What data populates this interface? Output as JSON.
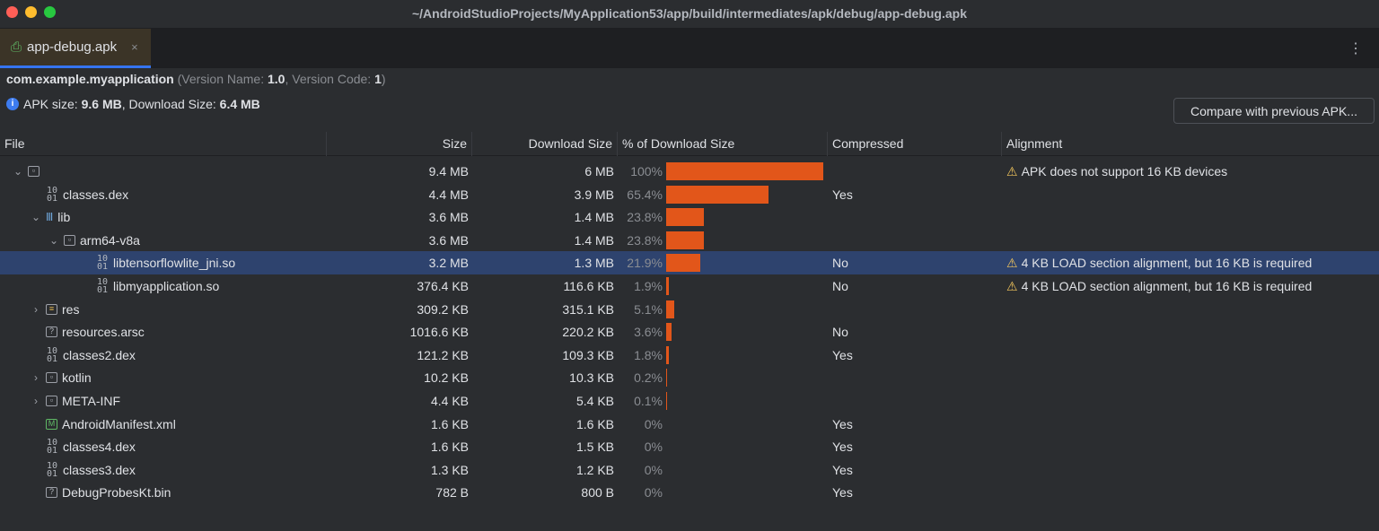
{
  "window": {
    "title": "~/AndroidStudioProjects/MyApplication53/app/build/intermediates/apk/debug/app-debug.apk"
  },
  "tab": {
    "label": "app-debug.apk",
    "close": "×"
  },
  "info": {
    "package": "com.example.myapplication",
    "version_name_label": "(Version Name: ",
    "version_name": "1.0",
    "version_code_label": ", Version Code: ",
    "version_code": "1",
    "close_paren": ")",
    "apk_size_label": "APK size: ",
    "apk_size": "9.6 MB",
    "download_size_label": ", Download Size: ",
    "download_size": "6.4 MB"
  },
  "compare_button": "Compare with previous APK...",
  "columns": [
    "File",
    "Size",
    "Download Size",
    "% of Download Size",
    "Compressed",
    "Alignment"
  ],
  "accent": "#e2561a",
  "rows": [
    {
      "name": "",
      "icon": "folder",
      "depth": 0,
      "expander": "expanded",
      "size": "9.4 MB",
      "download": "6 MB",
      "pct": "100%",
      "pct_value": 100,
      "compressed": "",
      "alignment": "APK does not support 16 KB devices"
    },
    {
      "name": "classes.dex",
      "icon": "binary",
      "depth": 1,
      "size": "4.4 MB",
      "download": "3.9 MB",
      "pct": "65.4%",
      "pct_value": 65.4,
      "compressed": "Yes",
      "alignment": ""
    },
    {
      "name": "lib",
      "icon": "library",
      "depth": 1,
      "expander": "expanded",
      "size": "3.6 MB",
      "download": "1.4 MB",
      "pct": "23.8%",
      "pct_value": 23.8,
      "compressed": "",
      "alignment": ""
    },
    {
      "name": "arm64-v8a",
      "icon": "folder",
      "depth": 2,
      "expander": "expanded",
      "size": "3.6 MB",
      "download": "1.4 MB",
      "pct": "23.8%",
      "pct_value": 23.8,
      "compressed": "",
      "alignment": ""
    },
    {
      "name": "libtensorflowlite_jni.so",
      "icon": "binary",
      "depth": 4,
      "size": "3.2 MB",
      "download": "1.3 MB",
      "pct": "21.9%",
      "pct_value": 21.9,
      "compressed": "No",
      "alignment": "4 KB LOAD section alignment, but 16 KB is required",
      "selected": true
    },
    {
      "name": "libmyapplication.so",
      "icon": "binary",
      "depth": 4,
      "size": "376.4 KB",
      "download": "116.6 KB",
      "pct": "1.9%",
      "pct_value": 1.9,
      "compressed": "No",
      "alignment": "4 KB LOAD section alignment, but 16 KB is required"
    },
    {
      "name": "res",
      "icon": "res-folder",
      "depth": 1,
      "expander": "collapsed",
      "size": "309.2 KB",
      "download": "315.1 KB",
      "pct": "5.1%",
      "pct_value": 5.1,
      "compressed": "",
      "alignment": ""
    },
    {
      "name": "resources.arsc",
      "icon": "unknown",
      "depth": 1,
      "size": "1016.6 KB",
      "download": "220.2 KB",
      "pct": "3.6%",
      "pct_value": 3.6,
      "compressed": "No",
      "alignment": ""
    },
    {
      "name": "classes2.dex",
      "icon": "binary",
      "depth": 1,
      "size": "121.2 KB",
      "download": "109.3 KB",
      "pct": "1.8%",
      "pct_value": 1.8,
      "compressed": "Yes",
      "alignment": ""
    },
    {
      "name": "kotlin",
      "icon": "folder",
      "depth": 1,
      "expander": "collapsed",
      "size": "10.2 KB",
      "download": "10.3 KB",
      "pct": "0.2%",
      "pct_value": 0.2,
      "compressed": "",
      "alignment": ""
    },
    {
      "name": "META-INF",
      "icon": "folder",
      "depth": 1,
      "expander": "collapsed",
      "size": "4.4 KB",
      "download": "5.4 KB",
      "pct": "0.1%",
      "pct_value": 0.1,
      "compressed": "",
      "alignment": ""
    },
    {
      "name": "AndroidManifest.xml",
      "icon": "manifest",
      "depth": 1,
      "size": "1.6 KB",
      "download": "1.6 KB",
      "pct": "0%",
      "pct_value": 0,
      "compressed": "Yes",
      "alignment": ""
    },
    {
      "name": "classes4.dex",
      "icon": "binary",
      "depth": 1,
      "size": "1.6 KB",
      "download": "1.5 KB",
      "pct": "0%",
      "pct_value": 0,
      "compressed": "Yes",
      "alignment": ""
    },
    {
      "name": "classes3.dex",
      "icon": "binary",
      "depth": 1,
      "size": "1.3 KB",
      "download": "1.2 KB",
      "pct": "0%",
      "pct_value": 0,
      "compressed": "Yes",
      "alignment": ""
    },
    {
      "name": "DebugProbesKt.bin",
      "icon": "unknown",
      "depth": 1,
      "size": "782 B",
      "download": "800 B",
      "pct": "0%",
      "pct_value": 0,
      "compressed": "Yes",
      "alignment": ""
    }
  ]
}
